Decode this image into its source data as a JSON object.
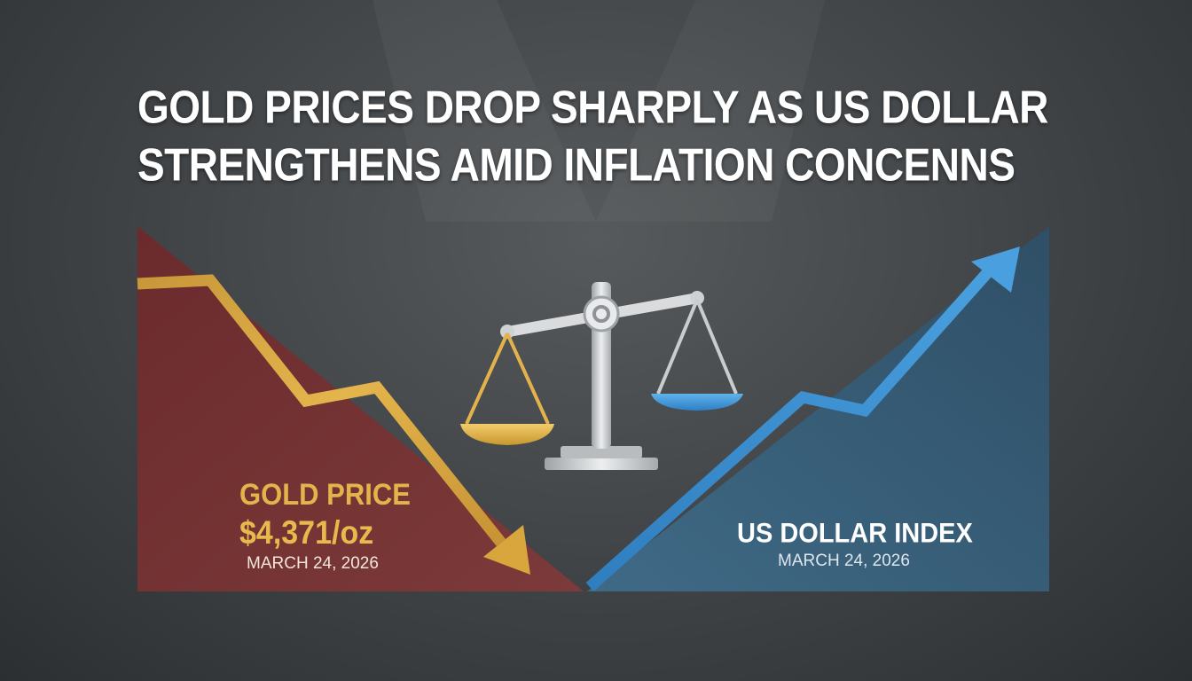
{
  "headline": {
    "line1": "GOLD PRICES DROP SHARPLY AS US DOLLAR",
    "line2": "STRENGTHENS AMID INFLATION CONCENNS"
  },
  "gold_panel": {
    "title": "GOLD PRICE",
    "value": "$4,371/oz",
    "date": "MARCH 24, 2026",
    "panel_color": "#7a3232",
    "arrow_color": "#d9a93f"
  },
  "usd_panel": {
    "title": "US DOLLAR INDEX",
    "date": "MARCH 24, 2026",
    "panel_color": "#3e5f78",
    "arrow_color": "#3a8fd0"
  },
  "icons": {
    "balance": "balance-scale-icon",
    "gold_trend": "down-trend-arrow-icon",
    "usd_trend": "up-trend-arrow-icon"
  }
}
